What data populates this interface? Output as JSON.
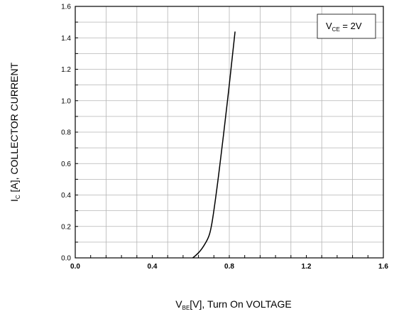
{
  "chart_data": {
    "type": "line",
    "title": "",
    "x_axis": {
      "label_main": "V",
      "label_sub": "BE",
      "label_rest": "[V], Turn On VOLTAGE",
      "range": [
        0.0,
        1.6
      ],
      "ticks": [
        "0.0",
        "0.4",
        "0.8",
        "1.2",
        "1.6"
      ]
    },
    "y_axis": {
      "label_main": "I",
      "label_sub": "C",
      "label_rest": " [A], COLLECTOR CURRENT",
      "range": [
        0.0,
        1.6
      ],
      "ticks": [
        "0.0",
        "0.2",
        "0.4",
        "0.6",
        "0.8",
        "1.0",
        "1.2",
        "1.4",
        "1.6"
      ]
    },
    "grid": true,
    "annotation": {
      "main": "V",
      "sub": "CE",
      "rest": " = 2V",
      "placement": "top-right"
    },
    "series": [
      {
        "x": [
          0.61,
          0.63,
          0.65,
          0.67,
          0.69,
          0.7,
          0.71,
          0.72,
          0.74,
          0.76,
          0.78,
          0.8,
          0.82,
          0.83
        ],
        "y": [
          0.0,
          0.02,
          0.045,
          0.08,
          0.125,
          0.16,
          0.22,
          0.3,
          0.48,
          0.68,
          0.89,
          1.1,
          1.33,
          1.44
        ]
      }
    ]
  }
}
